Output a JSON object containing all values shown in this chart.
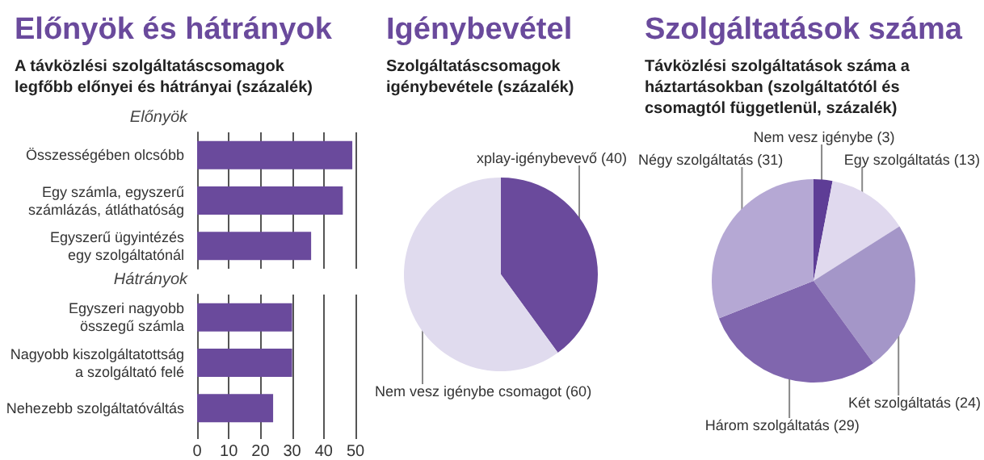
{
  "chart_data": [
    {
      "type": "bar",
      "title": "Előnyök és hátrányok",
      "subtitle": "A távközlési szolgáltatáscsomagok legfőbb előnyei és hátrányai (százalék)",
      "orientation": "horizontal",
      "categories": [
        "Összességében olcsóbb",
        "Egy számla, egyszerű\nszámlázás, átláthatóság",
        "Egyszerű ügyintézés\negy szolgáltatónál",
        "Egyszeri nagyobb\nösszegű számla",
        "Nagyobb kiszolgáltatottság\na szolgáltató felé",
        "Nehezebb szolgáltatóváltás"
      ],
      "values": [
        49,
        46,
        36,
        30,
        30,
        24
      ],
      "color": "#6a4a9c",
      "xlim": [
        0,
        50
      ],
      "xticks": [
        0,
        10,
        20,
        30,
        40,
        50
      ],
      "grid": "x",
      "legend": false,
      "annotations": [
        "Előnyök",
        "Hátrányok"
      ]
    },
    {
      "type": "pie",
      "title": "Igénybevétel",
      "subtitle": "Szolgáltatáscsomagok igénybevétele (százalék)",
      "categories": [
        "xplay-igénybevevő",
        "Nem vesz igénybe csomagot"
      ],
      "values": [
        40,
        60
      ],
      "colors": [
        "#6a4a9c",
        "#e0dbee"
      ],
      "value_labels": [
        "(40)",
        "(60)"
      ],
      "legend": false
    },
    {
      "type": "pie",
      "title": "Szolgáltatások száma",
      "subtitle": "Távközlési szolgáltatások száma a háztartásokban (szolgáltatótól és csomagtól függetlenül, százalék)",
      "categories": [
        "Nem vesz igénybe",
        "Egy szolgáltatás",
        "Két szolgáltatás",
        "Három szolgáltatás",
        "Négy szolgáltatás"
      ],
      "values": [
        3,
        13,
        24,
        29,
        31
      ],
      "colors": [
        "#5e3d96",
        "#e0d9ee",
        "#a496c8",
        "#8066ae",
        "#b5a8d4"
      ],
      "value_labels": [
        "(3)",
        "(13)",
        "(24)",
        "(29)",
        "(31)"
      ],
      "legend": false
    }
  ]
}
